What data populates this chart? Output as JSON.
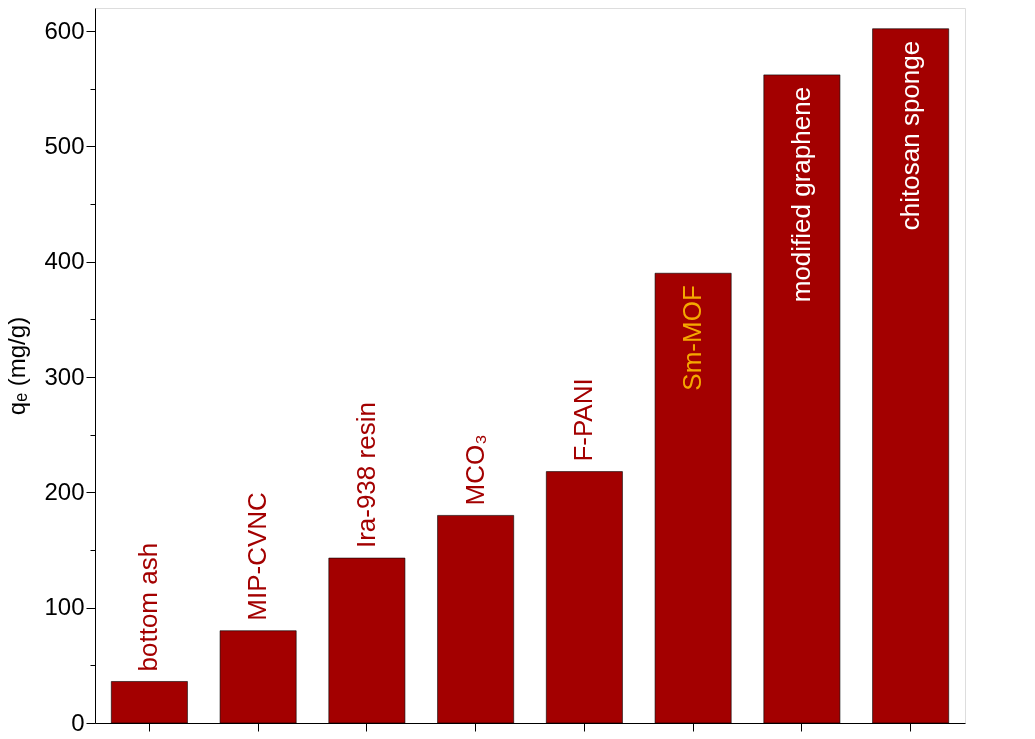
{
  "chart_data": {
    "type": "bar",
    "ylabel": "qₑ (mg/g)",
    "categories": [
      "bottom ash",
      "MIP-CVNC",
      "Ira-938 resin",
      "MCO₃",
      "F-PANI",
      "Sm-MOF",
      "modified graphene",
      "chitosan sponge"
    ],
    "values": [
      36,
      80,
      143,
      180,
      218,
      390,
      562,
      602
    ],
    "color": "#a30000",
    "ylim": [
      0,
      620
    ],
    "yticks": [
      0,
      {
        "value": 50,
        "label": null
      },
      100,
      {
        "value": 150,
        "label": null
      },
      200,
      {
        "value": 250,
        "label": null
      },
      300,
      {
        "value": 350,
        "label": null
      },
      400,
      {
        "value": 450,
        "label": null
      },
      500,
      {
        "value": 550,
        "label": null
      },
      600
    ],
    "grid": false
  }
}
